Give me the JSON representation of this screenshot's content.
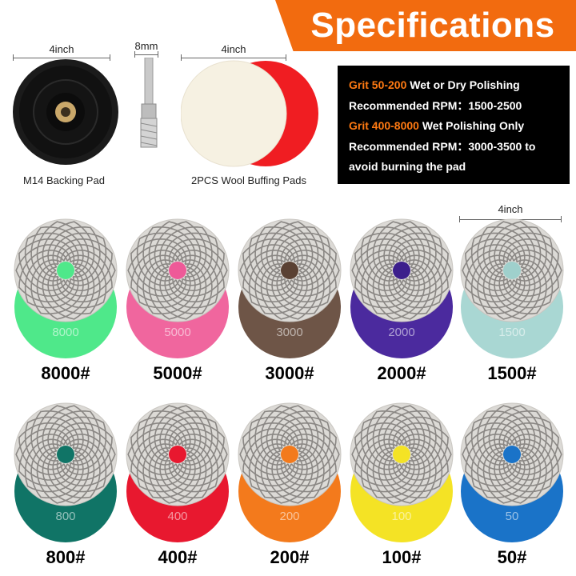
{
  "header": {
    "title": "Specifications"
  },
  "accessories": {
    "backing_pad": {
      "dimension": "4inch",
      "caption": "M14 Backing Pad"
    },
    "drill_adapter": {
      "dimension": "8mm"
    },
    "wool_pads": {
      "dimension": "4inch",
      "caption": "2PCS Wool Buffing Pads"
    }
  },
  "specs": {
    "line1_highlight": "Grit 50-200",
    "line1_text": " Wet or Dry Polishing",
    "line2": "Recommended RPM：1500-2500",
    "line3_highlight": "Grit 400-8000",
    "line3_text": " Wet Polishing Only",
    "line4": "Recommended RPM：3000-3500 to",
    "line5": "avoid burning the pad"
  },
  "pad_dimension": "4inch",
  "pads": [
    {
      "grit_label": "8000#",
      "disc_text": "8000",
      "color": "#4fe88a",
      "center_color": "#4fe88a"
    },
    {
      "grit_label": "5000#",
      "disc_text": "5000",
      "color": "#f0669e",
      "center_color": "#ee5a98"
    },
    {
      "grit_label": "3000#",
      "disc_text": "3000",
      "color": "#6e5547",
      "center_color": "#5a4133"
    },
    {
      "grit_label": "2000#",
      "disc_text": "2000",
      "color": "#4b2a9e",
      "center_color": "#3c1f8c"
    },
    {
      "grit_label": "1500#",
      "disc_text": "1500",
      "color": "#a9d7d3",
      "center_color": "#9fd0cc"
    },
    {
      "grit_label": "800#",
      "disc_text": "800",
      "color": "#107466",
      "center_color": "#107466"
    },
    {
      "grit_label": "400#",
      "disc_text": "400",
      "color": "#e8182f",
      "center_color": "#e8182f"
    },
    {
      "grit_label": "200#",
      "disc_text": "200",
      "color": "#f37a1c",
      "center_color": "#f37a1c"
    },
    {
      "grit_label": "100#",
      "disc_text": "100",
      "color": "#f4e325",
      "center_color": "#f4e325"
    },
    {
      "grit_label": "50#",
      "disc_text": "50",
      "color": "#1a73c8",
      "center_color": "#1a73c8"
    }
  ]
}
